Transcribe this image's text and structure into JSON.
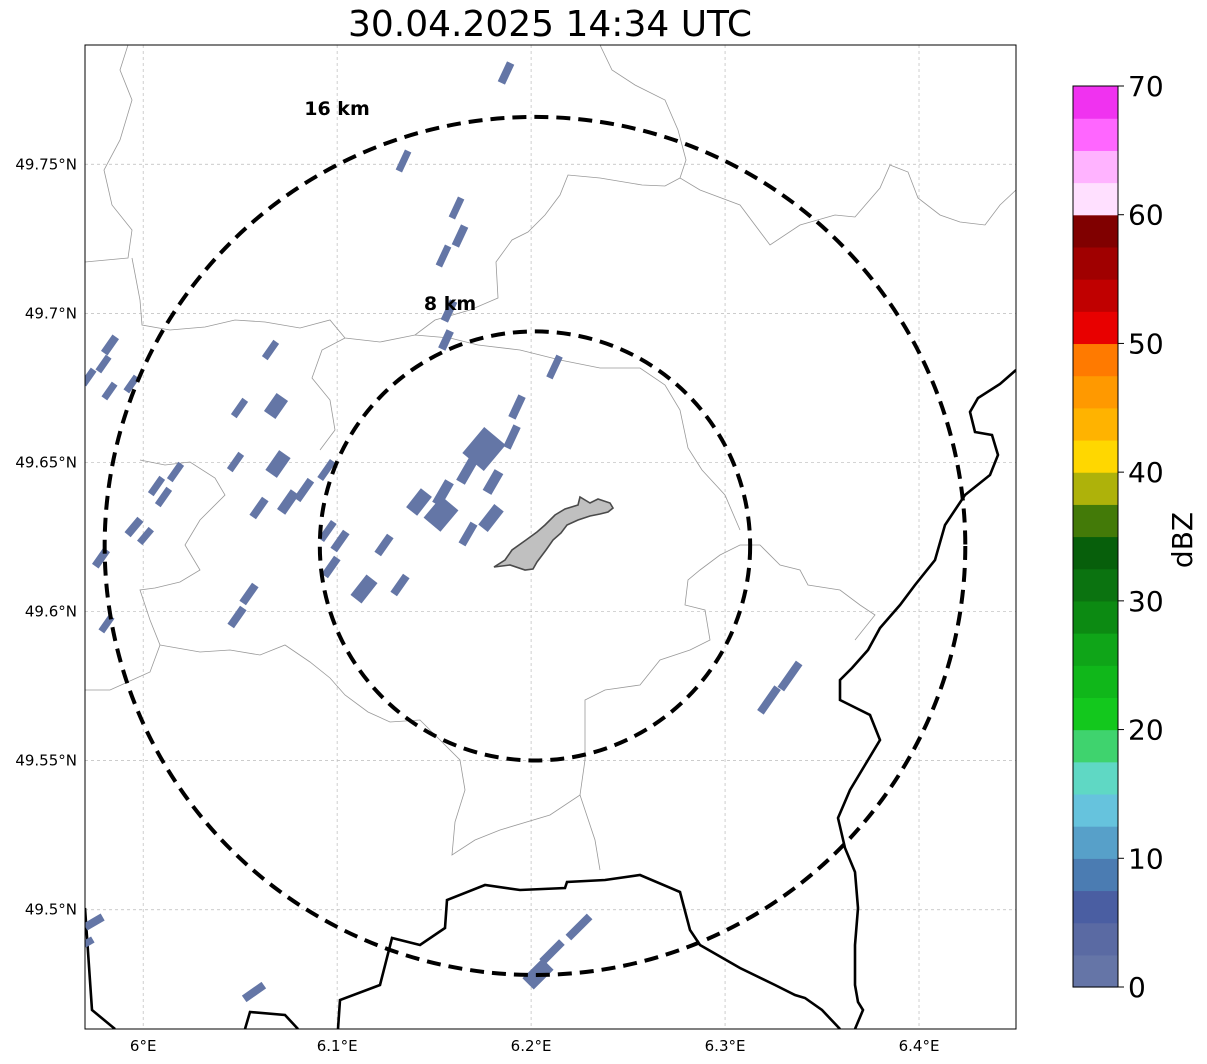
{
  "title": "30.04.2025 14:34 UTC",
  "map": {
    "lon_range": [
      5.97,
      6.45
    ],
    "lat_range": [
      49.46,
      49.79
    ],
    "lon_ticks": [
      {
        "value": 6.0,
        "label": "6°E"
      },
      {
        "value": 6.1,
        "label": "6.1°E"
      },
      {
        "value": 6.2,
        "label": "6.2°E"
      },
      {
        "value": 6.3,
        "label": "6.3°E"
      },
      {
        "value": 6.4,
        "label": "6.4°E"
      }
    ],
    "lat_ticks": [
      {
        "value": 49.75,
        "label": "49.75°N"
      },
      {
        "value": 49.7,
        "label": "49.7°N"
      },
      {
        "value": 49.65,
        "label": "49.65°N"
      },
      {
        "value": 49.6,
        "label": "49.6°N"
      },
      {
        "value": 49.55,
        "label": "49.55°N"
      },
      {
        "value": 49.5,
        "label": "49.5°N"
      }
    ],
    "gridlines": true,
    "center": {
      "lon": 6.202,
      "lat": 49.622
    },
    "rings": [
      {
        "radius_km": 8,
        "label": "8 km"
      },
      {
        "radius_km": 16,
        "label": "16 km"
      }
    ],
    "echo_color": "#6476a6",
    "urban_fill": "#c0c0c0"
  },
  "colorbar": {
    "label": "dBZ",
    "min": 0,
    "max": 70,
    "step": 2.5,
    "tick_labels": [
      "0",
      "10",
      "20",
      "30",
      "40",
      "50",
      "60",
      "70"
    ],
    "colors": [
      "#6575a7",
      "#5a6aa3",
      "#4a5ea2",
      "#4b7cb2",
      "#57a0c9",
      "#66c3dd",
      "#5fd8c4",
      "#3fd36e",
      "#13c81d",
      "#10b71a",
      "#0fa518",
      "#0c8a12",
      "#0b7310",
      "#075f0b",
      "#437a08",
      "#aeb20a",
      "#ffd700",
      "#ffb300",
      "#ff9900",
      "#ff7a00",
      "#e80000",
      "#c00000",
      "#a00000",
      "#800000",
      "#ffe0ff",
      "#ffb3ff",
      "#ff66ff",
      "#f032f0"
    ]
  }
}
